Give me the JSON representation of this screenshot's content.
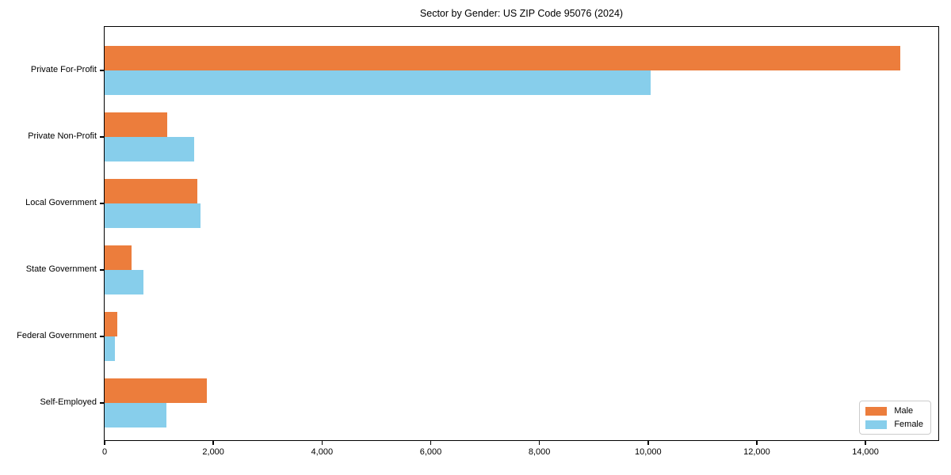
{
  "figure": {
    "title": "Sector by Gender: US ZIP Code 95076 (2024)"
  },
  "colors": {
    "male": "#ec7d3c",
    "female": "#87ceeb",
    "axis": "#000000",
    "background": "#ffffff",
    "legend_border": "#cccccc"
  },
  "legend": {
    "position": "lower right",
    "items": [
      {
        "label": "Male",
        "color": "#ec7d3c"
      },
      {
        "label": "Female",
        "color": "#87ceeb"
      }
    ]
  },
  "chart_data": {
    "type": "bar",
    "orientation": "horizontal",
    "title": "Sector by Gender: US ZIP Code 95076 (2024)",
    "categories": [
      "Private For-Profit",
      "Private Non-Profit",
      "Local Government",
      "State Government",
      "Federal Government",
      "Self-Employed"
    ],
    "series": [
      {
        "name": "Male",
        "color": "#ec7d3c",
        "values": [
          14640,
          1150,
          1700,
          490,
          230,
          1880
        ]
      },
      {
        "name": "Female",
        "color": "#87ceeb",
        "values": [
          10050,
          1650,
          1760,
          720,
          190,
          1140
        ]
      }
    ],
    "xlabel": "",
    "ylabel": "",
    "xlim": [
      0,
      15340
    ],
    "xticks": [
      0,
      2000,
      4000,
      6000,
      8000,
      10000,
      12000,
      14000
    ],
    "xtick_labels": [
      "0",
      "2,000",
      "4,000",
      "6,000",
      "8,000",
      "10,000",
      "12,000",
      "14,000"
    ],
    "grid": false,
    "legend_position": "lower right"
  }
}
